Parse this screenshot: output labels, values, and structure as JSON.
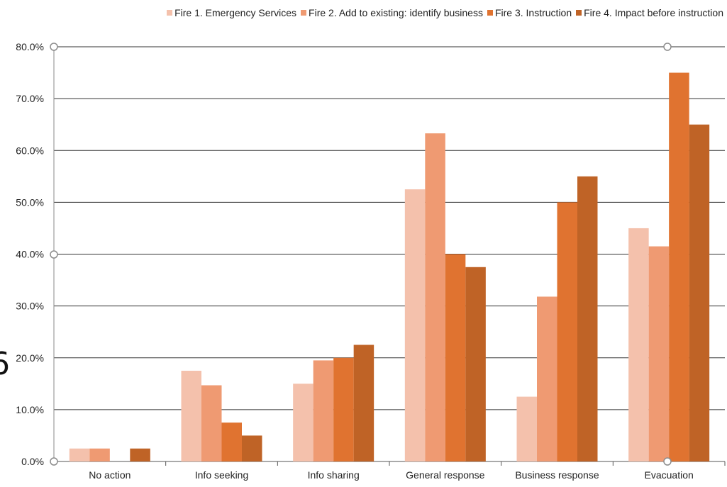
{
  "chart_data": {
    "type": "bar",
    "title": "",
    "xlabel": "",
    "ylabel": "",
    "ylim": [
      0,
      0.8
    ],
    "ytick_step": 0.1,
    "ytick_format": "percent_1dp",
    "grid": true,
    "legend_position": "top-right",
    "categories": [
      "No action",
      "Info seeking",
      "Info sharing",
      "General response",
      "Business response",
      "Evacuation"
    ],
    "series": [
      {
        "name": "Fire 1. Emergency Services",
        "color": "#f4c1ac",
        "values": [
          0.025,
          0.175,
          0.15,
          0.525,
          0.125,
          0.45
        ]
      },
      {
        "name": "Fire 2. Add to existing: identify business",
        "color": "#ef9a72",
        "values": [
          0.025,
          0.147,
          0.195,
          0.633,
          0.318,
          0.415
        ]
      },
      {
        "name": "Fire 3. Instruction",
        "color": "#e07330",
        "values": [
          0.0,
          0.075,
          0.2,
          0.4,
          0.5,
          0.75
        ]
      },
      {
        "name": "Fire 4. Impact before instruction",
        "color": "#bf6326",
        "values": [
          0.025,
          0.05,
          0.225,
          0.375,
          0.55,
          0.65
        ]
      }
    ]
  }
}
